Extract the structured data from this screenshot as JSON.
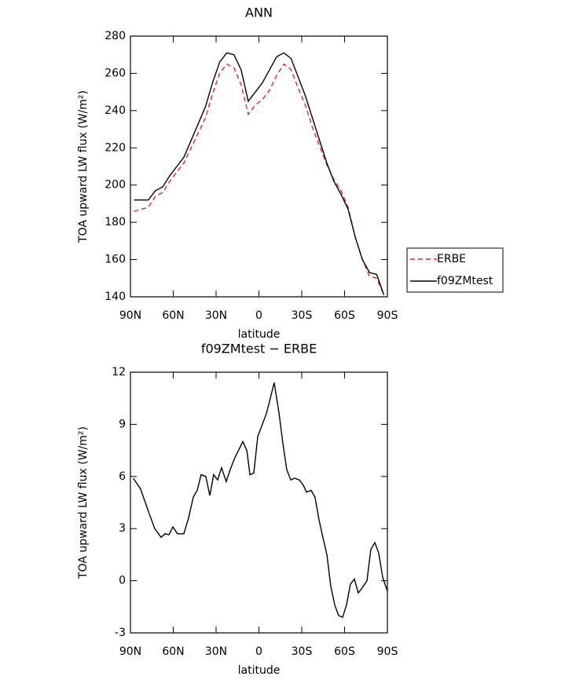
{
  "chart_data": [
    {
      "type": "line",
      "title": "ANN",
      "x_label": "latitude",
      "y_label": "TOA upward LW flux (W/m²)",
      "x": [
        87.5,
        82.5,
        77.5,
        72.5,
        67.5,
        62.5,
        57.5,
        52.5,
        47.5,
        42.5,
        37.5,
        32.5,
        27.5,
        22.5,
        17.5,
        12.5,
        7.5,
        2.5,
        -2.5,
        -7.5,
        -12.5,
        -17.5,
        -22.5,
        -27.5,
        -32.5,
        -37.5,
        -42.5,
        -47.5,
        -52.5,
        -57.5,
        -62.5,
        -67.5,
        -72.5,
        -77.5,
        -82.5,
        -87.5
      ],
      "series": [
        {
          "name": "ERBE",
          "color": "#e8231e",
          "line_style": "dashed",
          "values": [
            186,
            187,
            188,
            194,
            196,
            202,
            207,
            212,
            220,
            228,
            236,
            249,
            260,
            265,
            263,
            254,
            238,
            243,
            246,
            251,
            259,
            265,
            262,
            252,
            243,
            231,
            221,
            211,
            203,
            197,
            188,
            172,
            160,
            151,
            150,
            141
          ]
        },
        {
          "name": "f09ZMtest",
          "color": "#000000",
          "line_style": "solid",
          "values": [
            192,
            192,
            192,
            197,
            199,
            205,
            210,
            215,
            224,
            233,
            242,
            255,
            266,
            271,
            270,
            262,
            245,
            250,
            255,
            262,
            269,
            271,
            268,
            258,
            248,
            236,
            224,
            212,
            202,
            195,
            187,
            172,
            160,
            153,
            152,
            141
          ]
        }
      ],
      "xlim": [
        90,
        -90
      ],
      "xticks": [
        {
          "value": 90,
          "label": "90N"
        },
        {
          "value": 60,
          "label": "60N"
        },
        {
          "value": 30,
          "label": "30N"
        },
        0,
        {
          "value": -30,
          "label": "30S"
        },
        {
          "value": -60,
          "label": "60S"
        },
        {
          "value": -90,
          "label": "90S"
        }
      ],
      "ylim": [
        140,
        280
      ],
      "yticks": [
        140,
        160,
        180,
        200,
        220,
        240,
        260,
        280
      ],
      "legend": "right"
    },
    {
      "type": "line",
      "title": "f09ZMtest − ERBE",
      "x_label": "latitude",
      "y_label": "TOA upward LW flux (W/m²)",
      "x": [
        88,
        83,
        77,
        73,
        68.5,
        65.8,
        63,
        60.3,
        57,
        52.6,
        49.3,
        46,
        43.2,
        40.5,
        37.2,
        34.4,
        31.7,
        28.9,
        26.2,
        22.9,
        20.1,
        16.8,
        11.3,
        8.5,
        6.3,
        3.6,
        0.8,
        -1.9,
        -5.2,
        -8,
        -10.7,
        -14,
        -16.8,
        -19.5,
        -22.3,
        -25,
        -28.3,
        -31.1,
        -33.3,
        -36.6,
        -39.3,
        -42.1,
        -44.8,
        -47.6,
        -50.3,
        -53.1,
        -55.8,
        -58.6,
        -61.3,
        -64.1,
        -66.9,
        -69.6,
        -72.4,
        -75.7,
        -78.4,
        -81.2,
        -83.9,
        -86.7,
        -90
      ],
      "values": [
        5.9,
        5.3,
        3.9,
        3.0,
        2.5,
        2.7,
        2.65,
        3.1,
        2.7,
        2.7,
        3.6,
        4.8,
        5.2,
        6.1,
        6.0,
        4.9,
        6.1,
        5.8,
        6.5,
        5.7,
        6.4,
        7.1,
        8.0,
        7.5,
        6.1,
        6.2,
        8.3,
        8.9,
        9.6,
        10.5,
        11.4,
        9.7,
        7.9,
        6.4,
        5.8,
        5.9,
        5.8,
        5.5,
        5.1,
        5.2,
        4.8,
        3.5,
        2.5,
        1.5,
        -0.3,
        -1.4,
        -2.0,
        -2.1,
        -1.4,
        -0.2,
        0.1,
        -0.7,
        -0.4,
        0.0,
        1.8,
        2.2,
        1.6,
        0.2,
        -0.6
      ],
      "color": "#000000",
      "xlim": [
        90,
        -90
      ],
      "xticks": [
        {
          "value": 90,
          "label": "90N"
        },
        {
          "value": 60,
          "label": "60N"
        },
        {
          "value": 30,
          "label": "30N"
        },
        0,
        {
          "value": -30,
          "label": "30S"
        },
        {
          "value": -60,
          "label": "60S"
        },
        {
          "value": -90,
          "label": "90S"
        }
      ],
      "ylim": [
        -3,
        12
      ],
      "yticks": [
        -3,
        0,
        3,
        6,
        9,
        12
      ]
    }
  ]
}
